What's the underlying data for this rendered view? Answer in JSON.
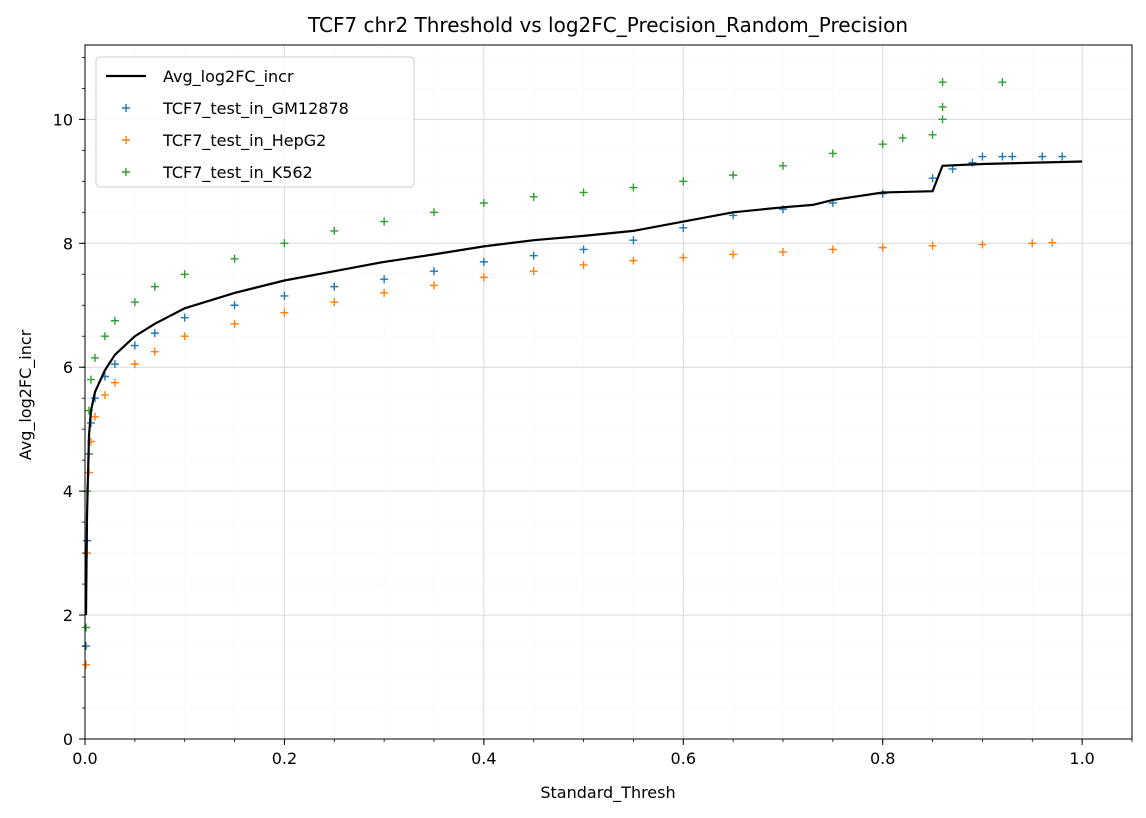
{
  "chart_data": {
    "type": "scatter",
    "title": "TCF7 chr2 Threshold vs log2FC_Precision_Random_Precision",
    "xlabel": "Standard_Thresh",
    "ylabel": "Avg_log2FC_incr",
    "xlim": [
      0.0,
      1.05
    ],
    "ylim": [
      0,
      11.2
    ],
    "xticks": [
      0.0,
      0.2,
      0.4,
      0.6,
      0.8,
      1.0
    ],
    "xtick_labels": [
      "0.0",
      "0.2",
      "0.4",
      "0.6",
      "0.8",
      "1.0"
    ],
    "yticks": [
      0,
      2,
      4,
      6,
      8,
      10
    ],
    "ytick_labels": [
      "0",
      "2",
      "4",
      "6",
      "8",
      "10"
    ],
    "grid": "major and minor",
    "legend_position": "upper-left",
    "series": [
      {
        "name": "Avg_log2FC_incr",
        "kind": "line",
        "color": "#000000",
        "x": [
          0.001,
          0.002,
          0.004,
          0.006,
          0.01,
          0.02,
          0.03,
          0.05,
          0.07,
          0.1,
          0.15,
          0.2,
          0.25,
          0.3,
          0.35,
          0.4,
          0.45,
          0.5,
          0.55,
          0.6,
          0.65,
          0.7,
          0.73,
          0.75,
          0.8,
          0.85,
          0.86,
          0.9,
          1.0
        ],
        "y": [
          2.0,
          3.6,
          4.9,
          5.3,
          5.6,
          5.95,
          6.2,
          6.5,
          6.7,
          6.95,
          7.2,
          7.4,
          7.55,
          7.7,
          7.82,
          7.95,
          8.05,
          8.12,
          8.2,
          8.35,
          8.5,
          8.58,
          8.62,
          8.7,
          8.82,
          8.84,
          9.25,
          9.28,
          9.32
        ]
      },
      {
        "name": "TCF7_test_in_GM12878",
        "kind": "scatter",
        "color": "#1f77b4",
        "x": [
          0.001,
          0.002,
          0.004,
          0.006,
          0.01,
          0.02,
          0.03,
          0.05,
          0.07,
          0.1,
          0.15,
          0.2,
          0.25,
          0.3,
          0.35,
          0.4,
          0.45,
          0.5,
          0.55,
          0.6,
          0.65,
          0.7,
          0.75,
          0.8,
          0.85,
          0.87,
          0.89,
          0.9,
          0.92,
          0.93,
          0.96,
          0.98
        ],
        "y": [
          1.5,
          3.2,
          4.6,
          5.1,
          5.5,
          5.85,
          6.05,
          6.35,
          6.55,
          6.8,
          7.0,
          7.15,
          7.3,
          7.42,
          7.55,
          7.7,
          7.8,
          7.9,
          8.05,
          8.25,
          8.45,
          8.55,
          8.65,
          8.8,
          9.05,
          9.2,
          9.3,
          9.4,
          9.4,
          9.4,
          9.4,
          9.4
        ]
      },
      {
        "name": "TCF7_test_in_HepG2",
        "kind": "scatter",
        "color": "#ff7f0e",
        "x": [
          0.001,
          0.002,
          0.004,
          0.006,
          0.01,
          0.02,
          0.03,
          0.05,
          0.07,
          0.1,
          0.15,
          0.2,
          0.25,
          0.3,
          0.35,
          0.4,
          0.45,
          0.5,
          0.55,
          0.6,
          0.65,
          0.7,
          0.75,
          0.8,
          0.85,
          0.9,
          0.95,
          0.97
        ],
        "y": [
          1.2,
          3.0,
          4.3,
          4.8,
          5.2,
          5.55,
          5.75,
          6.05,
          6.25,
          6.5,
          6.7,
          6.88,
          7.05,
          7.2,
          7.32,
          7.45,
          7.55,
          7.65,
          7.72,
          7.77,
          7.82,
          7.86,
          7.9,
          7.93,
          7.96,
          7.98,
          8.0,
          8.01
        ]
      },
      {
        "name": "TCF7_test_in_K562",
        "kind": "scatter",
        "color": "#2ca02c",
        "x": [
          0.001,
          0.002,
          0.004,
          0.006,
          0.01,
          0.02,
          0.03,
          0.05,
          0.07,
          0.1,
          0.15,
          0.2,
          0.25,
          0.3,
          0.35,
          0.4,
          0.45,
          0.5,
          0.55,
          0.6,
          0.65,
          0.7,
          0.75,
          0.8,
          0.82,
          0.85,
          0.86,
          0.86,
          0.86,
          0.92
        ],
        "y": [
          1.8,
          4.0,
          5.3,
          5.8,
          6.15,
          6.5,
          6.75,
          7.05,
          7.3,
          7.5,
          7.75,
          8.0,
          8.2,
          8.35,
          8.5,
          8.65,
          8.75,
          8.82,
          8.9,
          9.0,
          9.1,
          9.25,
          9.45,
          9.6,
          9.7,
          9.75,
          10.2,
          10.6,
          10.0,
          10.6
        ]
      }
    ]
  }
}
